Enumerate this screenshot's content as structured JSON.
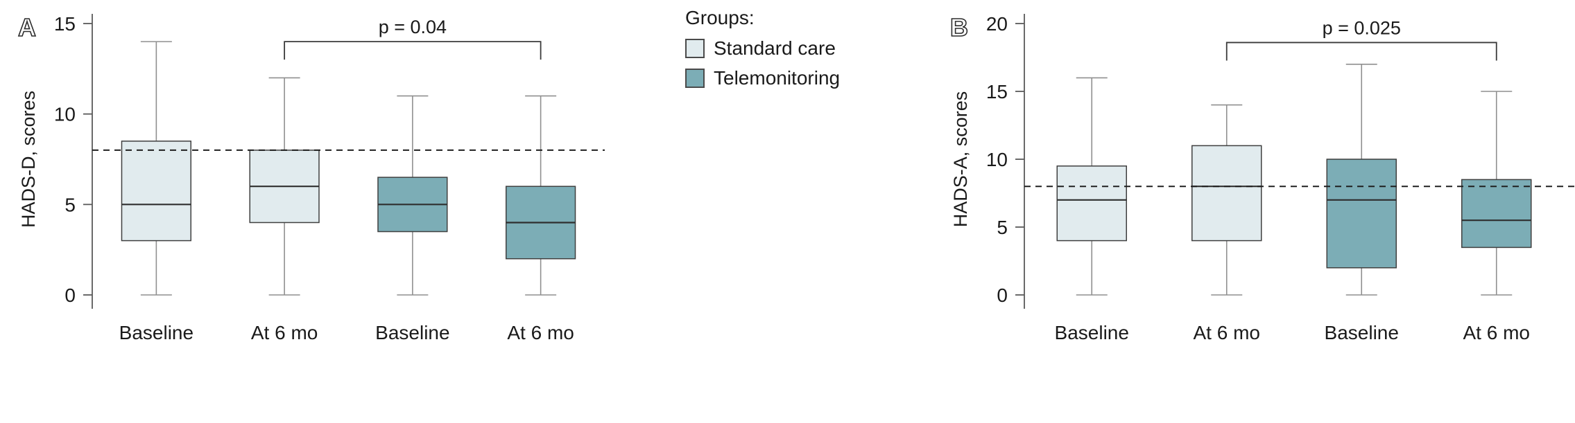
{
  "legend": {
    "title": "Groups:",
    "items": [
      {
        "label": "Standard care",
        "color": "#e1ebee"
      },
      {
        "label": "Telemonitoring",
        "color": "#7cadb6"
      }
    ]
  },
  "colors": {
    "box_stroke": "#3f3f3f",
    "median": "#2e2e2e",
    "whisker": "#8f8f8f",
    "axis": "#5a5a5a",
    "dashed": "#1f1f1f",
    "bracket": "#3a3a3a",
    "text": "#1a1a1a"
  },
  "chart_data": {
    "type": "box",
    "panels": [
      {
        "label": "A",
        "ylabel": "HADS-D, scores",
        "ylim": [
          0,
          15
        ],
        "yticks": [
          0,
          5,
          10,
          15
        ],
        "categories": [
          "Baseline",
          "At 6 mo",
          "Baseline",
          "At 6 mo"
        ],
        "reference_line_y": 8,
        "reference_line_to_edge": false,
        "significance": {
          "label": "p = 0.04",
          "from_box": 1,
          "to_box": 3,
          "y": 14
        },
        "boxes": [
          {
            "group": "Standard care",
            "whisker_low": 0,
            "q1": 3,
            "median": 5,
            "q3": 8.5,
            "whisker_high": 14
          },
          {
            "group": "Standard care",
            "whisker_low": 0,
            "q1": 4,
            "median": 6,
            "q3": 8,
            "whisker_high": 12
          },
          {
            "group": "Telemonitoring",
            "whisker_low": 0,
            "q1": 3.5,
            "median": 5,
            "q3": 6.5,
            "whisker_high": 11
          },
          {
            "group": "Telemonitoring",
            "whisker_low": 0,
            "q1": 2,
            "median": 4,
            "q3": 6,
            "whisker_high": 11
          }
        ]
      },
      {
        "label": "B",
        "ylabel": "HADS-A, scores",
        "ylim": [
          0,
          20
        ],
        "yticks": [
          0,
          5,
          10,
          15,
          20
        ],
        "categories": [
          "Baseline",
          "At 6 mo",
          "Baseline",
          "At 6 mo"
        ],
        "reference_line_y": 8,
        "reference_line_to_edge": true,
        "significance": {
          "label": "p = 0.025",
          "from_box": 1,
          "to_box": 3,
          "y": 18.6
        },
        "boxes": [
          {
            "group": "Standard care",
            "whisker_low": 0,
            "q1": 4,
            "median": 7,
            "q3": 9.5,
            "whisker_high": 16
          },
          {
            "group": "Standard care",
            "whisker_low": 0,
            "q1": 4,
            "median": 8,
            "q3": 11,
            "whisker_high": 14
          },
          {
            "group": "Telemonitoring",
            "whisker_low": 0,
            "q1": 2,
            "median": 7,
            "q3": 10,
            "whisker_high": 17
          },
          {
            "group": "Telemonitoring",
            "whisker_low": 0,
            "q1": 3.5,
            "median": 5.5,
            "q3": 8.5,
            "whisker_high": 15
          }
        ]
      }
    ]
  }
}
